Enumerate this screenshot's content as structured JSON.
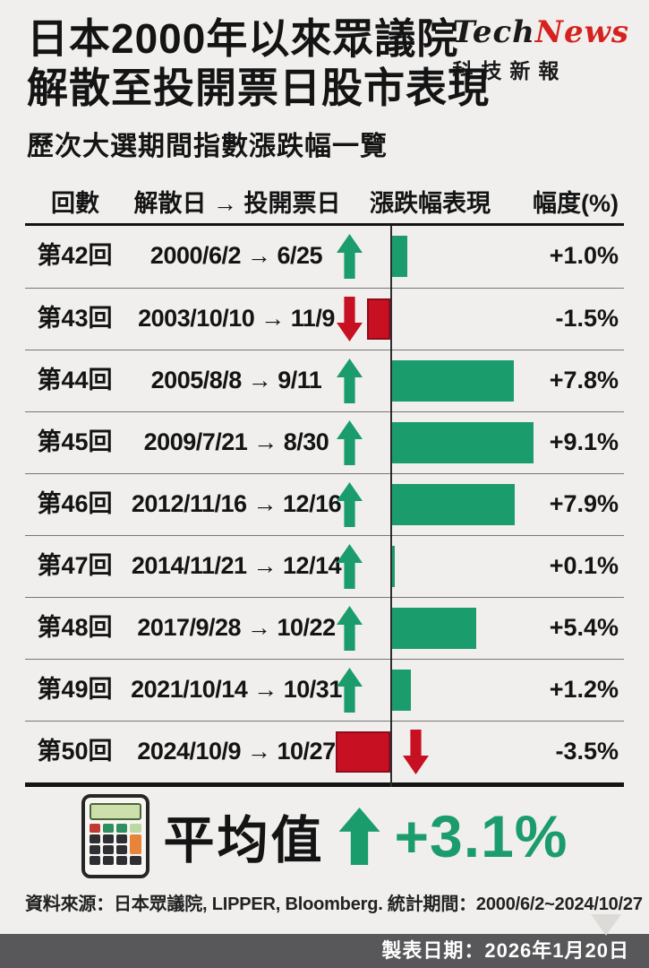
{
  "colors": {
    "background": "#f0efed",
    "positive_green": "#1b9c6d",
    "negative_red": "#c81023",
    "footer_bar": "#58585a",
    "logo_red": "#d6221f"
  },
  "logo": {
    "brand_black": "Tech",
    "brand_red": "News",
    "subtitle": "科技新報"
  },
  "header": {
    "title_line1": "日本2000年以來眾議院",
    "title_line2": "解散至投開票日股市表現",
    "subtitle": "歷次大選期間指數漲跌幅一覽"
  },
  "table": {
    "columns": {
      "round": "回數",
      "dates": "解散日 → 投開票日",
      "performance": "漲跌幅表現",
      "magnitude": "幅度(%)"
    }
  },
  "chart_data": {
    "type": "bar",
    "orientation": "horizontal",
    "title": "日本2000年以來眾議院解散至投開票日股市表現",
    "subtitle": "歷次大選期間指數漲跌幅一覽",
    "xlabel": "幅度(%)",
    "xlim": [
      -4,
      10
    ],
    "grid": false,
    "categories": [
      "第42回",
      "第43回",
      "第44回",
      "第45回",
      "第46回",
      "第47回",
      "第48回",
      "第49回",
      "第50回"
    ],
    "rows": [
      {
        "round": "第42回",
        "period": "2000/6/2 → 6/25",
        "value": 1.0,
        "label": "+1.0%",
        "direction": "up"
      },
      {
        "round": "第43回",
        "period": "2003/10/10 → 11/9",
        "value": -1.5,
        "label": "-1.5%",
        "direction": "down"
      },
      {
        "round": "第44回",
        "period": "2005/8/8 → 9/11",
        "value": 7.8,
        "label": "+7.8%",
        "direction": "up"
      },
      {
        "round": "第45回",
        "period": "2009/7/21 → 8/30",
        "value": 9.1,
        "label": "+9.1%",
        "direction": "up"
      },
      {
        "round": "第46回",
        "period": "2012/11/16 → 12/16",
        "value": 7.9,
        "label": "+7.9%",
        "direction": "up"
      },
      {
        "round": "第47回",
        "period": "2014/11/21 → 12/14",
        "value": 0.1,
        "label": "+0.1%",
        "direction": "up"
      },
      {
        "round": "第48回",
        "period": "2017/9/28 → 10/22",
        "value": 5.4,
        "label": "+5.4%",
        "direction": "up"
      },
      {
        "round": "第49回",
        "period": "2021/10/14 → 10/31",
        "value": 1.2,
        "label": "+1.2%",
        "direction": "up"
      },
      {
        "round": "第50回",
        "period": "2024/10/9 → 10/27",
        "value": -3.5,
        "label": "-3.5%",
        "direction": "down"
      }
    ],
    "average": {
      "label": "平均值",
      "value": 3.1,
      "display": "+3.1%",
      "direction": "up"
    }
  },
  "footer": {
    "source": "資料來源：日本眾議院, LIPPER, Bloomberg. 統計期間：2000/6/2~2024/10/27",
    "made_date": "製表日期：2026年1月20日"
  }
}
